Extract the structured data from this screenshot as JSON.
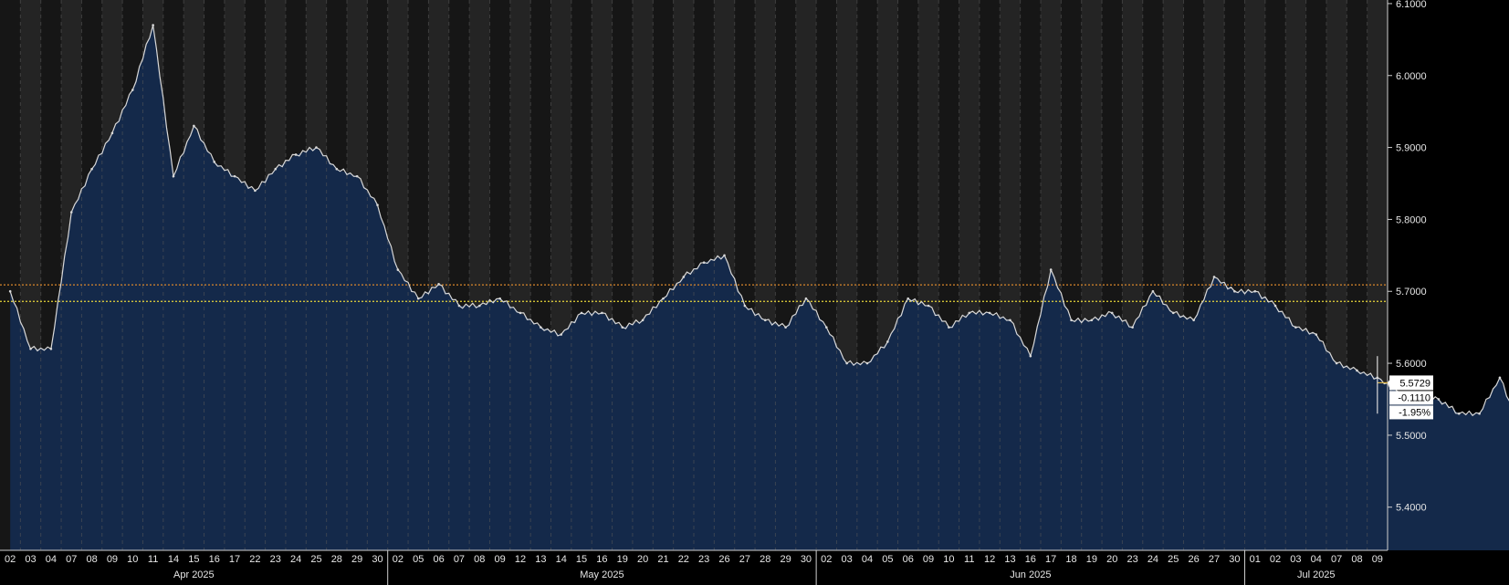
{
  "chart_data": {
    "type": "area",
    "title": "",
    "xlabel": "",
    "ylabel": "",
    "ylim": [
      5.34,
      6.105
    ],
    "yticks": [
      "5.4000",
      "5.5000",
      "5.6000",
      "5.7000",
      "5.8000",
      "5.9000",
      "6.0000",
      "6.1000"
    ],
    "months": [
      {
        "label": "Apr 2025",
        "days": [
          "02",
          "03",
          "04",
          "07",
          "08",
          "09",
          "10",
          "11",
          "14",
          "15",
          "16",
          "17",
          "22",
          "23",
          "24",
          "25",
          "28",
          "29",
          "30"
        ]
      },
      {
        "label": "May 2025",
        "days": [
          "02",
          "05",
          "06",
          "07",
          "08",
          "09",
          "12",
          "13",
          "14",
          "15",
          "16",
          "19",
          "20",
          "21",
          "22",
          "23",
          "26",
          "27",
          "28",
          "29",
          "30"
        ]
      },
      {
        "label": "Jun 2025",
        "days": [
          "02",
          "03",
          "04",
          "05",
          "06",
          "09",
          "10",
          "11",
          "12",
          "13",
          "16",
          "17",
          "18",
          "19",
          "20",
          "23",
          "24",
          "25",
          "26",
          "27",
          "30"
        ]
      },
      {
        "label": "Jul 2025",
        "days": [
          "01",
          "02",
          "03",
          "04",
          "07",
          "08",
          "09"
        ]
      }
    ],
    "series": [
      {
        "values": [
          5.7,
          5.62,
          5.62,
          5.81,
          5.87,
          5.92,
          5.98,
          6.07,
          5.86,
          5.93,
          5.88,
          5.86,
          5.84,
          5.87,
          5.89,
          5.9,
          5.87,
          5.86,
          5.82,
          5.73,
          5.69,
          5.71,
          5.68,
          5.68,
          5.69,
          5.67,
          5.65,
          5.64,
          5.67,
          5.67,
          5.65,
          5.66,
          5.69,
          5.72,
          5.74,
          5.75,
          5.68,
          5.66,
          5.65,
          5.69,
          5.65,
          5.6,
          5.6,
          5.63,
          5.69,
          5.68,
          5.65,
          5.67,
          5.67,
          5.66,
          5.61,
          5.73,
          5.66,
          5.66,
          5.67,
          5.65,
          5.7,
          5.67,
          5.66,
          5.72,
          5.7,
          5.7,
          5.68,
          5.65,
          5.64,
          5.6,
          5.59,
          5.58,
          5.56,
          5.55,
          5.55,
          5.53,
          5.53,
          5.58,
          5.51,
          5.49,
          5.5,
          5.49,
          5.48,
          5.52,
          5.51,
          5.49,
          5.55,
          5.5,
          5.48,
          5.48,
          5.44,
          5.46,
          5.43,
          5.41,
          5.42,
          5.45,
          5.47,
          5.46,
          5.46,
          5.47,
          5.52,
          5.57
        ]
      }
    ],
    "reference_lines": [
      {
        "value": 5.709,
        "color": "#d9862a",
        "style": "dotted"
      },
      {
        "value": 5.686,
        "color": "#e8d63a",
        "style": "dotted"
      }
    ],
    "last_value": {
      "value": 5.5729,
      "price": "5.5729",
      "change": "-0.1110",
      "pct": "-1.95%"
    },
    "colors": {
      "background": "#000000",
      "band_a": "#161616",
      "band_b": "#242424",
      "area": "#14294a",
      "line": "#d8d8d8",
      "last_line": "#e0b84a"
    },
    "grid": true
  }
}
